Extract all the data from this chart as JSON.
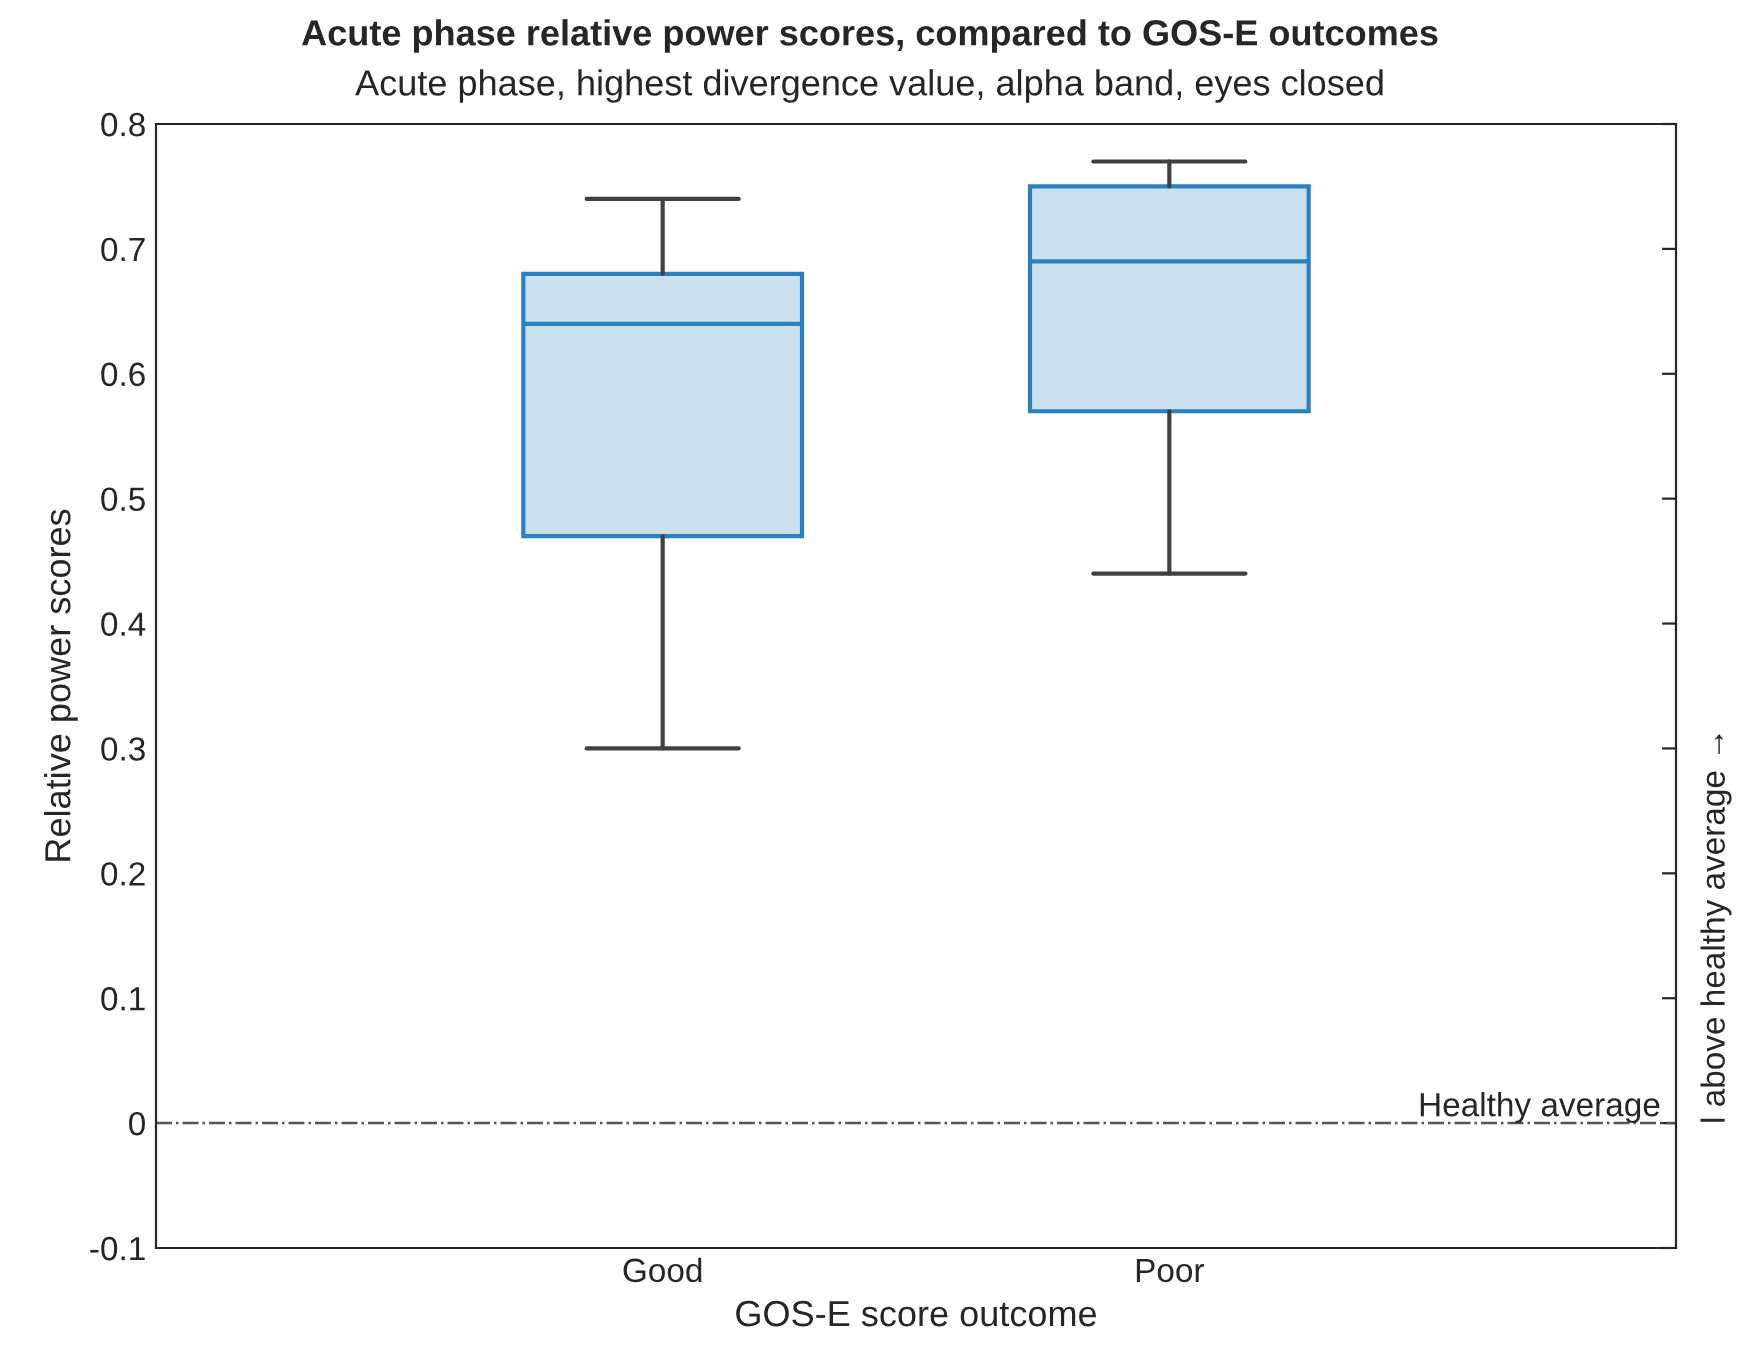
{
  "chart_data": {
    "type": "box",
    "title": "Acute phase relative power scores, compared to GOS-E outcomes",
    "subtitle": "Acute phase, highest divergence value, alpha band, eyes closed",
    "xlabel": "GOS-E score outcome",
    "ylabel": "Relative power scores",
    "categories": [
      "Good",
      "Poor"
    ],
    "boxes": [
      {
        "low": 0.3,
        "q1": 0.47,
        "median": 0.64,
        "q3": 0.68,
        "high": 0.74
      },
      {
        "low": 0.44,
        "q1": 0.57,
        "median": 0.69,
        "q3": 0.75,
        "high": 0.77
      }
    ],
    "color": "#2a80c0",
    "ylim": [
      -0.1,
      0.8
    ],
    "yticks": [
      -0.1,
      0,
      0.1,
      0.2,
      0.3,
      0.4,
      0.5,
      0.6,
      0.7,
      0.8
    ],
    "ref_lines": [
      {
        "axis": "y",
        "value": 0,
        "label": "Healthy average",
        "color": "#555555",
        "line_style": "dashdot"
      }
    ],
    "annotations": [
      "l above healthy average →"
    ],
    "grid": false
  }
}
